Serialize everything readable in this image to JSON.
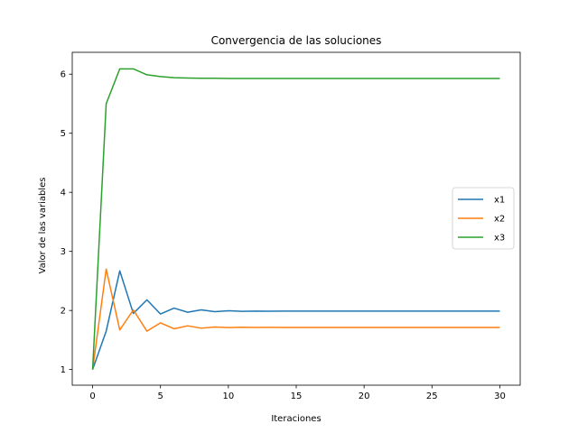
{
  "chart_data": {
    "type": "line",
    "title": "Convergencia de las soluciones",
    "xlabel": "Iteraciones",
    "ylabel": "Valor de las variables",
    "xlim": [
      -1.5,
      31.5
    ],
    "ylim": [
      0.735,
      6.37
    ],
    "xticks": [
      0,
      5,
      10,
      15,
      20,
      25,
      30
    ],
    "yticks": [
      1,
      2,
      3,
      4,
      5,
      6
    ],
    "grid": false,
    "legend_position": "right",
    "x": [
      0,
      1,
      2,
      3,
      4,
      5,
      6,
      7,
      8,
      9,
      10,
      11,
      12,
      13,
      14,
      15,
      16,
      17,
      18,
      19,
      20,
      21,
      22,
      23,
      24,
      25,
      26,
      27,
      28,
      29,
      30
    ],
    "series": [
      {
        "name": "x1",
        "color": "#1f77b4",
        "values": [
          1.0,
          1.65,
          2.67,
          1.95,
          2.18,
          1.94,
          2.04,
          1.97,
          2.01,
          1.98,
          1.995,
          1.985,
          1.99,
          1.988,
          1.989,
          1.989,
          1.989,
          1.989,
          1.989,
          1.989,
          1.989,
          1.989,
          1.989,
          1.989,
          1.989,
          1.989,
          1.989,
          1.989,
          1.989,
          1.989,
          1.989
        ]
      },
      {
        "name": "x2",
        "color": "#ff7f0e",
        "values": [
          1.0,
          2.7,
          1.67,
          2.01,
          1.65,
          1.79,
          1.69,
          1.74,
          1.7,
          1.72,
          1.71,
          1.716,
          1.712,
          1.714,
          1.713,
          1.713,
          1.713,
          1.713,
          1.713,
          1.713,
          1.713,
          1.713,
          1.713,
          1.713,
          1.713,
          1.713,
          1.713,
          1.713,
          1.713,
          1.713,
          1.713
        ]
      },
      {
        "name": "x3",
        "color": "#2ca02c",
        "values": [
          1.0,
          5.5,
          6.09,
          6.09,
          5.99,
          5.96,
          5.94,
          5.935,
          5.93,
          5.93,
          5.928,
          5.928,
          5.928,
          5.928,
          5.928,
          5.928,
          5.928,
          5.928,
          5.928,
          5.928,
          5.928,
          5.928,
          5.928,
          5.928,
          5.928,
          5.928,
          5.928,
          5.928,
          5.928,
          5.928,
          5.928
        ]
      }
    ]
  }
}
